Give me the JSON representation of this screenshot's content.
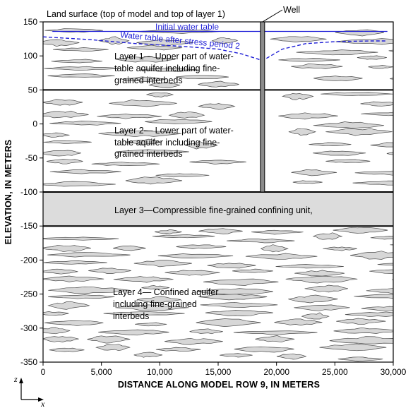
{
  "title": "",
  "x_axis_label": "DISTANCE ALONG MODEL ROW 9, IN METERS",
  "y_axis_label": "ELEVATION, IN METERS",
  "y_ticks": [
    150,
    100,
    50,
    0,
    -50,
    -100,
    -150,
    -200,
    -250,
    -300,
    -350
  ],
  "y_tick_labels": [
    "150",
    "100",
    "50",
    "0",
    "-50",
    "-100",
    "-150",
    "-200",
    "-250",
    "-300",
    "-350"
  ],
  "x_ticks": [
    0,
    5000,
    10000,
    15000,
    20000,
    25000,
    30000
  ],
  "x_tick_labels": [
    "0",
    "5,000",
    "10,000",
    "15,000",
    "20,000",
    "25,000",
    "30,000"
  ],
  "x_range": [
    0,
    30000
  ],
  "y_range": [
    -350,
    150
  ],
  "land_surface_label": "Land surface (top of model and top of layer 1)",
  "well_label": "Well",
  "well_x": 18800,
  "well_bottom": -100,
  "initial_water_table_label": "Initial water table",
  "initial_water_table_elevation": 136,
  "stressed_water_table_label": "Water table after stress period 2",
  "stressed_water_table": {
    "x": [
      0,
      4000,
      8000,
      12000,
      15000,
      17000,
      18300,
      18800,
      19300,
      20500,
      22500,
      25000,
      28000,
      29500
    ],
    "y": [
      128,
      124,
      118,
      114,
      110,
      103,
      96,
      93,
      98,
      110,
      118,
      121,
      122,
      122
    ]
  },
  "layer_boundaries": [
    50,
    -100,
    -150
  ],
  "layers": [
    {
      "name": "Layer 1",
      "lines": [
        "Layer 1— Upper part of water-",
        "table aquifer including fine-",
        "grained interbeds"
      ]
    },
    {
      "name": "Layer 2",
      "lines": [
        "Layer 2— Lower part of water-",
        "table aquifer including fine-",
        "grained interbeds"
      ]
    },
    {
      "name": "Layer 3",
      "lines": [
        "Layer 3—Compressible fine-grained confining unit,"
      ]
    },
    {
      "name": "Layer 4",
      "lines": [
        "Layer 4— Confined aquifer",
        "including fine-grained",
        "interbeds"
      ]
    }
  ],
  "axes_indicator": {
    "z": "z",
    "x": "x"
  },
  "colors": {
    "water_table": "#1f1fd6",
    "interbed_fill": "#d7d7d7",
    "confining_unit_fill": "#dcdcdc",
    "well_fill": "#8c8c8c"
  }
}
